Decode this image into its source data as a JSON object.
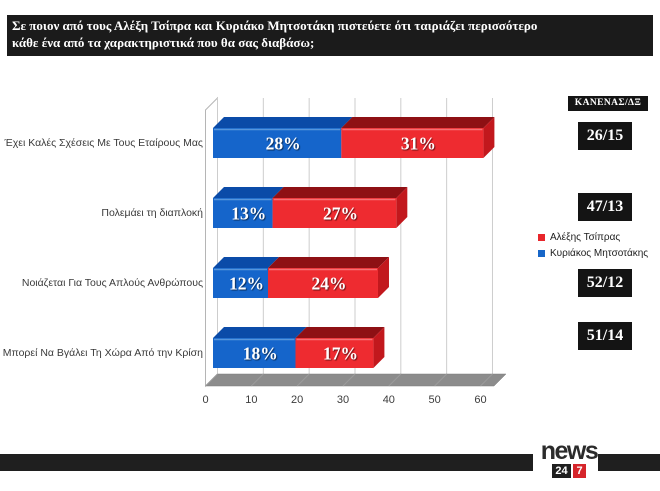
{
  "title": {
    "line1": "Σε ποιον από τους Αλέξη Τσίπρα και Κυριάκο Μητσοτάκη πιστεύετε ότι ταιριάζει περισσότερο",
    "line2": "κάθε ένα από τα χαρακτηριστικά που θα σας διαβάσω;"
  },
  "chart_data": {
    "type": "bar",
    "orientation": "horizontal",
    "stacked": true,
    "style": "3d",
    "title": "Σε ποιον από τους Αλέξη Τσίπρα και Κυριάκο Μητσοτάκη πιστεύετε ότι ταιριάζει περισσότερο κάθε ένα από τα χαρακτηριστικά που θα σας διαβάσω;",
    "categories": [
      "Έχει Καλές Σχέσεις Με Τους Εταίρους Μας",
      "Πολεμάει τη διαπλοκή",
      "Νοιάζεται Για Τους Απλούς Ανθρώπους",
      "Μπορεί Να Βγάλει Τη Χώρα Από την Κρίση"
    ],
    "series": [
      {
        "name": "Κυριάκος Μητσοτάκης",
        "values": [
          28,
          13,
          12,
          18
        ],
        "colors": {
          "front": "#1565CB",
          "top": "#0A4BA8",
          "side": "#093E8C",
          "highlight": "#5E9BDE"
        }
      },
      {
        "name": "Αλέξης Τσίπρας",
        "values": [
          31,
          27,
          24,
          17
        ],
        "colors": {
          "front": "#EE2B30",
          "top": "#8E1014",
          "side": "#C2181D",
          "highlight": "#F5787C"
        }
      }
    ],
    "value_suffix": "%",
    "xticks": [
      0,
      10,
      20,
      30,
      40,
      50,
      60
    ],
    "xlim": [
      0,
      60
    ],
    "grid": true,
    "legend_position": "right",
    "none_dk": {
      "header": "ΚΑΝΕΝΑΣ/ΔΞ",
      "values": [
        "26/15",
        "47/13",
        "52/12",
        "51/14"
      ]
    }
  },
  "legend": {
    "items": [
      {
        "label": "Αλέξης Τσίπρας",
        "color": "#E8262B"
      },
      {
        "label": "Κυριάκος Μητσοτάκης",
        "color": "#1766C8"
      }
    ]
  },
  "logo": {
    "news": "news",
    "n24": "24",
    "n7": "7"
  }
}
